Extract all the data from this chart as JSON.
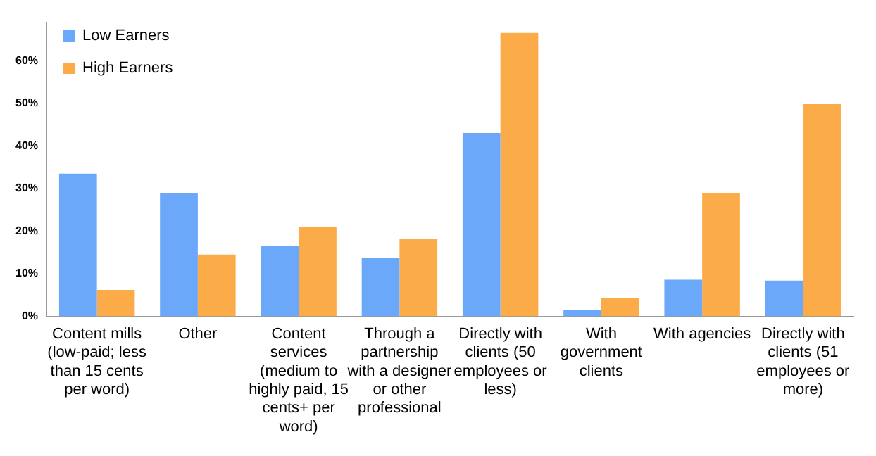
{
  "chart_data": {
    "type": "bar",
    "categories": [
      "Content mills (low-paid; less than 15 cents per word)",
      "Other",
      "Content services (medium to highly paid, 15 cents+ per word)",
      "Through a partnership with a designer or other professional",
      "Directly with clients (50 employees or less)",
      "With government clients",
      "With agencies",
      "Directly with clients (51 employees or more)"
    ],
    "series": [
      {
        "name": "Low Earners",
        "color": "#6ba8fa",
        "values": [
          33.5,
          29,
          16.6,
          13.8,
          43,
          1.5,
          8.6,
          8.4
        ]
      },
      {
        "name": "High Earners",
        "color": "#fbab48",
        "values": [
          6.2,
          14.5,
          21,
          18.2,
          66.5,
          4.3,
          29,
          49.8
        ]
      }
    ],
    "ylim": [
      0,
      69
    ],
    "yticks": [
      {
        "value": 0,
        "label": "0%"
      },
      {
        "value": 10,
        "label": "10%"
      },
      {
        "value": 20,
        "label": "20%"
      },
      {
        "value": 30,
        "label": "30%"
      },
      {
        "value": 40,
        "label": "40%"
      },
      {
        "value": 50,
        "label": "50%"
      },
      {
        "value": 60,
        "label": "60%"
      }
    ],
    "grid": false,
    "legend": "top left"
  }
}
